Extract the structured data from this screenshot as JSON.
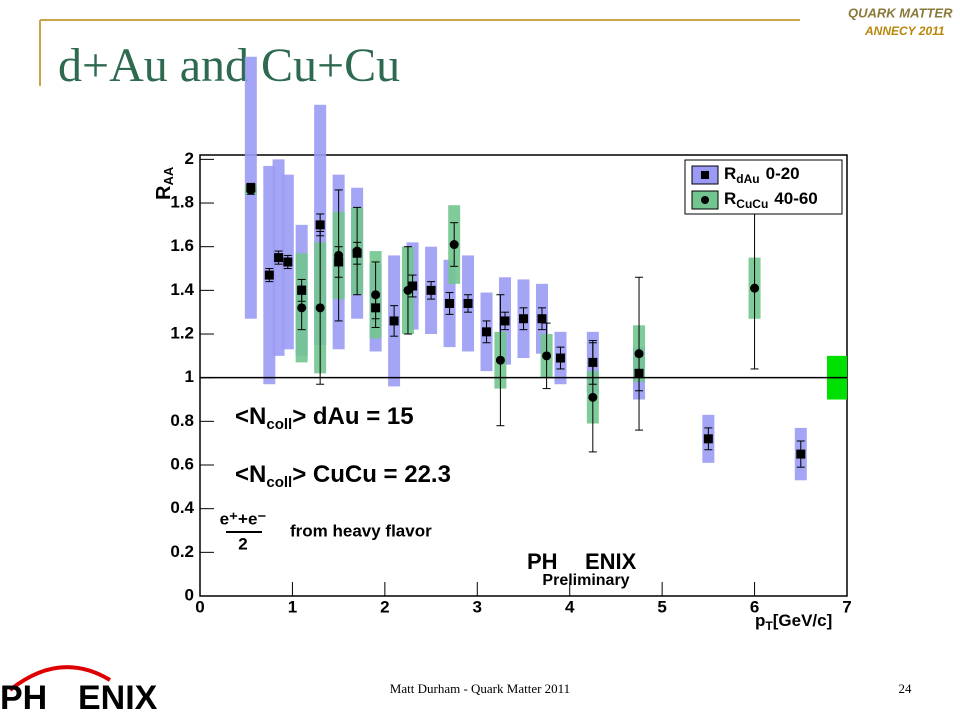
{
  "slide": {
    "title": "d+Au and Cu+Cu",
    "footer": "Matt Durham - Quark Matter 2011",
    "page": "24",
    "logo_top": [
      "QUARK MATTER",
      "ANNECY 2011"
    ],
    "logo_bottom": [
      "PH",
      "ENIX"
    ]
  },
  "chart_data": {
    "type": "scatter",
    "y_label": [
      "R",
      "AA"
    ],
    "x_label": [
      "p",
      "T",
      "[GeV/c]"
    ],
    "xlim": [
      0,
      7
    ],
    "ylim": [
      0,
      2.02
    ],
    "xticks": [
      0,
      1,
      2,
      3,
      4,
      5,
      6,
      7
    ],
    "yticks": [
      0,
      0.2,
      0.4,
      0.6,
      0.8,
      1,
      1.2,
      1.4,
      1.6,
      1.8,
      2
    ],
    "reference_line": 1,
    "normalization": {
      "x": 7,
      "low": 0.9,
      "high": 1.1,
      "color": "#00e000"
    },
    "series": [
      {
        "name": [
          "R",
          "dAu",
          "0-20"
        ],
        "marker": "square",
        "color": "#9b9bf5",
        "x": [
          0.55,
          0.75,
          0.85,
          0.95,
          1.1,
          1.3,
          1.5,
          1.7,
          1.9,
          2.1,
          2.3,
          2.5,
          2.7,
          2.9,
          3.1,
          3.3,
          3.5,
          3.7,
          3.9,
          4.25,
          4.75,
          5.5,
          6.5
        ],
        "values": [
          1.87,
          1.47,
          1.55,
          1.53,
          1.4,
          1.7,
          1.53,
          1.57,
          1.32,
          1.26,
          1.42,
          1.4,
          1.34,
          1.34,
          1.21,
          1.26,
          1.27,
          1.27,
          1.09,
          1.07,
          1.02,
          0.72,
          0.65
        ],
        "stat_errors": [
          0.02,
          0.03,
          0.03,
          0.03,
          0.05,
          0.05,
          0.07,
          0.05,
          0.05,
          0.07,
          0.05,
          0.04,
          0.05,
          0.04,
          0.05,
          0.04,
          0.05,
          0.05,
          0.05,
          0.1,
          0.08,
          0.05,
          0.06
        ],
        "sys_errors": [
          0.6,
          0.5,
          0.45,
          0.4,
          0.3,
          0.55,
          0.4,
          0.3,
          0.2,
          0.3,
          0.2,
          0.2,
          0.2,
          0.22,
          0.18,
          0.2,
          0.18,
          0.16,
          0.12,
          0.14,
          0.12,
          0.11,
          0.12
        ]
      },
      {
        "name": [
          "R",
          "CuCu",
          "40-60"
        ],
        "marker": "circle",
        "color": "#72c58f",
        "x": [
          0.55,
          1.1,
          1.3,
          1.5,
          1.7,
          1.9,
          2.25,
          2.75,
          3.25,
          3.75,
          4.25,
          4.75,
          6
        ],
        "values": [
          1.86,
          1.32,
          1.32,
          1.56,
          1.58,
          1.38,
          1.4,
          1.61,
          1.08,
          1.1,
          0.91,
          1.11,
          1.41
        ],
        "stat_errors": [
          0.02,
          0.1,
          0.35,
          0.3,
          0.2,
          0.15,
          0.2,
          0.1,
          0.3,
          0.15,
          0.25,
          0.35,
          0.37
        ],
        "sys_errors": [
          0.02,
          0.25,
          0.3,
          0.2,
          0.2,
          0.2,
          0.2,
          0.18,
          0.13,
          0.1,
          0.12,
          0.13,
          0.14
        ]
      }
    ],
    "annotations": [
      [
        "<N",
        "coll",
        "> dAu = 15"
      ],
      [
        "<N",
        "coll",
        "> CuCu = 22.3"
      ]
    ],
    "fraction": {
      "numerator": "e⁺+e⁻",
      "denominator": "2",
      "text": "from heavy flavor"
    },
    "preliminary": "Preliminary",
    "phenix": [
      "PH",
      "ENIX"
    ]
  }
}
